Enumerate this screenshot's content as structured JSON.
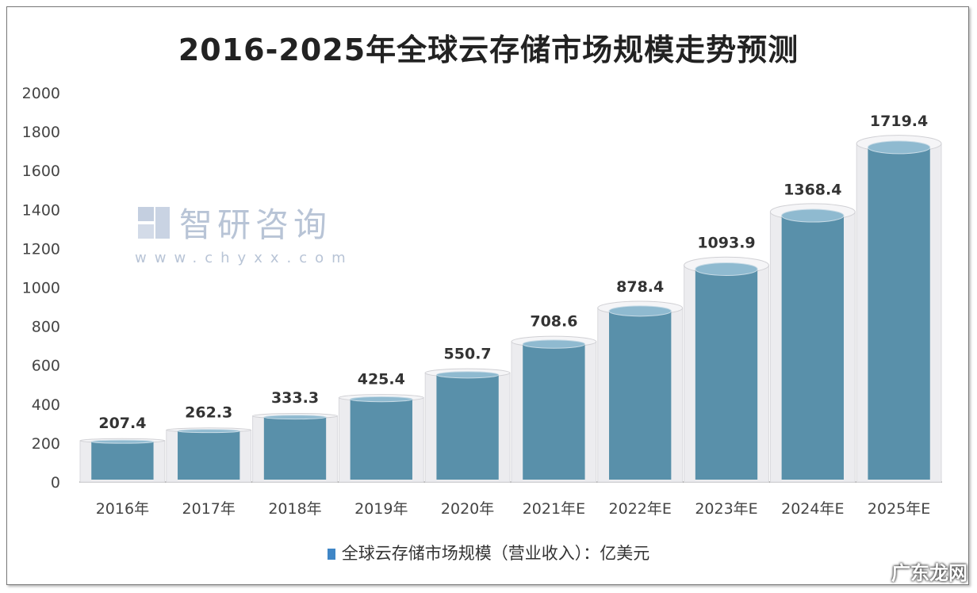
{
  "chart_data": {
    "type": "bar",
    "title": "2016-2025年全球云存储市场规模走势预测",
    "categories": [
      "2016年",
      "2017年",
      "2018年",
      "2019年",
      "2020年",
      "2021年E",
      "2022年E",
      "2023年E",
      "2024年E",
      "2025年E"
    ],
    "series": [
      {
        "name": "全球云存储市场规模（营业收入）：亿美元",
        "values": [
          207.4,
          262.3,
          333.3,
          425.4,
          550.7,
          708.6,
          878.4,
          1093.9,
          1368.4,
          1719.4
        ]
      }
    ],
    "data_labels": [
      "207.4",
      "262.3",
      "333.3",
      "425.4",
      "550.7",
      "708.6",
      "878.4",
      "1093.9",
      "1368.4",
      "1719.4"
    ],
    "ylim": [
      0,
      2000
    ],
    "yticks": [
      "0",
      "200",
      "400",
      "600",
      "800",
      "1000",
      "1200",
      "1400",
      "1600",
      "1800",
      "2000"
    ],
    "grid": false,
    "legend_position": "bottom",
    "bar_style": "3d-cylinder",
    "colors": {
      "bar": "#5990aa",
      "bar_top": "#8fbad0",
      "glass": "#ececef",
      "legend_swatch": "#3f86c6"
    }
  },
  "watermark": {
    "name": "智研咨询",
    "url": "www.chyxx.com",
    "corner": "广东龙网"
  }
}
